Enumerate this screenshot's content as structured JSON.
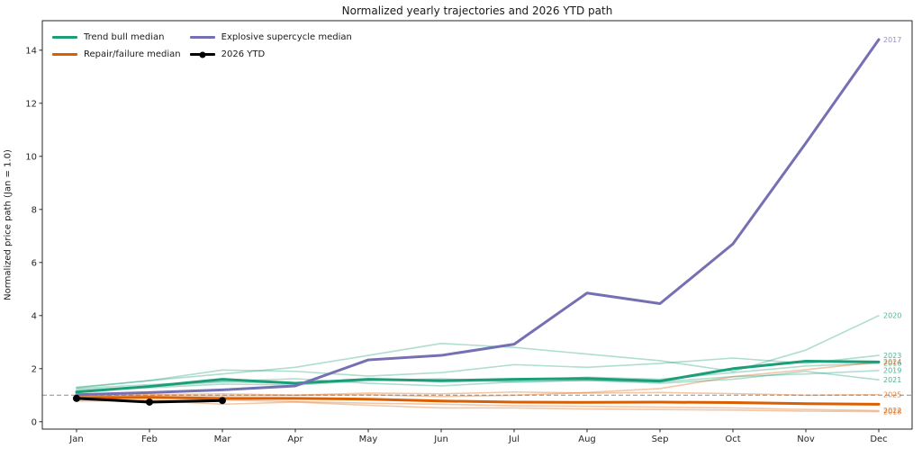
{
  "chart_data": {
    "type": "line",
    "title": "Normalized yearly trajectories and 2026 YTD path",
    "ylabel": "Normalized price path (Jan = 1.0)",
    "x_categories": [
      "Jan",
      "Feb",
      "Mar",
      "Apr",
      "May",
      "Jun",
      "Jul",
      "Aug",
      "Sep",
      "Oct",
      "Nov",
      "Dec"
    ],
    "y_ticks": [
      0,
      2,
      4,
      6,
      8,
      10,
      12,
      14
    ],
    "ylim": [
      -0.31,
      15.08
    ],
    "grid": false,
    "legend_position": "upper-left-inside",
    "reference_line": {
      "value": 1.0,
      "style": "dashed"
    },
    "colors": {
      "trend_bull": "#1b9e77",
      "repair_failure": "#d95f02",
      "explosive_supercycle": "#7570b3",
      "ytd": "#000000",
      "reference_line": "#8c8c8c",
      "axis": "#262626",
      "year_line_alpha": 0.35,
      "year_label_alpha": 0.78
    },
    "series": [
      {
        "name": "2016",
        "class": "trend_bull",
        "role": "year",
        "values": [
          1.2,
          1.32,
          1.5,
          1.45,
          1.62,
          1.5,
          1.55,
          1.68,
          1.6,
          1.85,
          2.1,
          2.2
        ]
      },
      {
        "name": "2018",
        "class": "repair_failure",
        "role": "year",
        "values": [
          0.88,
          0.8,
          0.66,
          0.74,
          0.62,
          0.52,
          0.52,
          0.48,
          0.46,
          0.44,
          0.4,
          0.38
        ]
      },
      {
        "name": "2019",
        "class": "trend_bull",
        "role": "year",
        "values": [
          1.15,
          1.28,
          1.42,
          1.38,
          1.55,
          1.62,
          1.5,
          1.56,
          1.5,
          1.7,
          1.8,
          1.93
        ]
      },
      {
        "name": "2020",
        "class": "trend_bull",
        "role": "year",
        "values": [
          1.3,
          1.55,
          1.8,
          2.05,
          2.5,
          2.95,
          2.8,
          2.55,
          2.3,
          1.9,
          2.7,
          4.0
        ]
      },
      {
        "name": "2021",
        "class": "trend_bull",
        "role": "year",
        "values": [
          1.25,
          1.4,
          1.52,
          1.62,
          1.45,
          1.35,
          1.5,
          1.56,
          1.45,
          1.6,
          1.9,
          1.58
        ]
      },
      {
        "name": "2022",
        "class": "repair_failure",
        "role": "year",
        "values": [
          0.78,
          0.8,
          0.82,
          0.76,
          0.7,
          0.66,
          0.6,
          0.58,
          0.55,
          0.52,
          0.46,
          0.42
        ]
      },
      {
        "name": "2023",
        "class": "trend_bull",
        "role": "year",
        "values": [
          1.28,
          1.55,
          1.95,
          1.9,
          1.72,
          1.85,
          2.15,
          2.05,
          2.2,
          2.4,
          2.2,
          2.5
        ]
      },
      {
        "name": "2024",
        "class": "repair_failure",
        "role": "year",
        "values": [
          0.95,
          1.0,
          0.98,
          1.0,
          1.02,
          0.95,
          1.0,
          1.1,
          1.25,
          1.7,
          1.96,
          2.25
        ]
      },
      {
        "name": "2025",
        "class": "repair_failure",
        "role": "year",
        "values": [
          0.96,
          1.02,
          1.05,
          1.0,
          1.08,
          1.05,
          1.12,
          1.08,
          1.1,
          1.06,
          1.0,
          1.02
        ]
      },
      {
        "name": "2017",
        "class": "explosive_supercycle",
        "role": "year",
        "values": [
          1.02,
          1.1,
          1.2,
          1.35,
          2.33,
          2.5,
          2.92,
          4.85,
          4.45,
          6.7,
          10.5,
          14.4
        ]
      },
      {
        "name": "Trend bull median",
        "class": "trend_bull",
        "role": "median",
        "values": [
          1.12,
          1.33,
          1.6,
          1.45,
          1.6,
          1.55,
          1.6,
          1.63,
          1.53,
          2.0,
          2.28,
          2.25
        ]
      },
      {
        "name": "Repair/failure median",
        "class": "repair_failure",
        "role": "median",
        "values": [
          0.9,
          0.92,
          0.88,
          0.88,
          0.85,
          0.78,
          0.74,
          0.73,
          0.74,
          0.72,
          0.68,
          0.66
        ]
      },
      {
        "name": "Explosive supercycle median",
        "class": "explosive_supercycle",
        "role": "median",
        "values": [
          1.02,
          1.1,
          1.2,
          1.35,
          2.33,
          2.5,
          2.92,
          4.85,
          4.45,
          6.7,
          10.5,
          14.4
        ]
      },
      {
        "name": "2026 YTD",
        "class": "ytd",
        "role": "ytd",
        "markers": true,
        "values": [
          0.88,
          0.74,
          0.8
        ]
      }
    ]
  },
  "legend": {
    "items": [
      {
        "label": "Trend bull median",
        "color_key": "trend_bull",
        "swatch": "line"
      },
      {
        "label": "Repair/failure median",
        "color_key": "repair_failure",
        "swatch": "line"
      },
      {
        "label": "Explosive supercycle median",
        "color_key": "explosive_supercycle",
        "swatch": "line"
      },
      {
        "label": "2026 YTD",
        "color_key": "ytd",
        "swatch": "line-marker"
      }
    ]
  }
}
